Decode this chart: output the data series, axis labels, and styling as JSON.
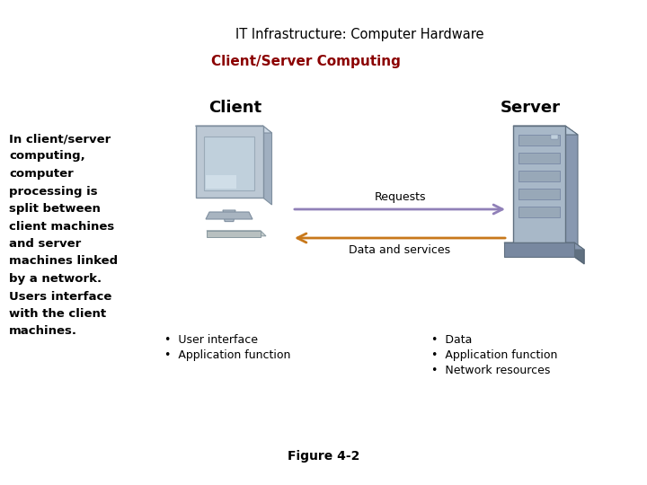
{
  "title": "IT Infrastructure: Computer Hardware",
  "subtitle": "Client/Server Computing",
  "subtitle_color": "#8B0000",
  "left_text_lines": [
    "In client/server",
    "computing,",
    "computer",
    "processing is",
    "split between",
    "client machines",
    "and server",
    "machines linked",
    "by a network.",
    "Users interface",
    "with the client",
    "machines."
  ],
  "client_label": "Client",
  "server_label": "Server",
  "request_label": "Requests",
  "data_label": "Data and services",
  "client_bullets": [
    "User interface",
    "Application function"
  ],
  "server_bullets": [
    "Data",
    "Application function",
    "Network resources"
  ],
  "figure_caption": "Figure 4-2",
  "bg_color": "#ffffff",
  "arrow_request_color": "#9080b8",
  "arrow_data_color": "#c8781a",
  "title_fontsize": 10.5,
  "subtitle_fontsize": 11,
  "client_server_fontsize": 13,
  "body_fontsize": 9.5,
  "bullet_fontsize": 9,
  "caption_fontsize": 10,
  "monitor_frame_color": "#c8d0dc",
  "monitor_screen_color": "#b8ccd8",
  "monitor_shadow_color": "#a0aab8",
  "server_body_color": "#b0bcc8",
  "server_dark_color": "#8090a0",
  "server_light_color": "#d0dce8",
  "server_base_color": "#7888a0"
}
